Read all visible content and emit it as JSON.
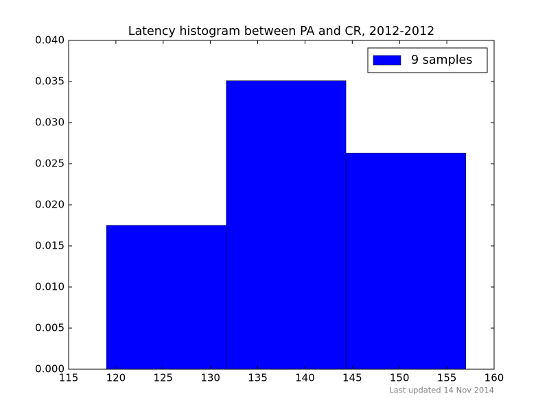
{
  "chart_data": {
    "type": "histogram",
    "title": "Latency histogram between PA and CR, 2012-2012",
    "bins": [
      119,
      131.67,
      144.33,
      157
    ],
    "series": [
      {
        "name": "9 samples",
        "color": "#0000ff",
        "values": [
          0.0175,
          0.0351,
          0.0263
        ]
      }
    ],
    "xlim": [
      115,
      160
    ],
    "xticks": [
      115,
      120,
      125,
      130,
      135,
      140,
      145,
      150,
      155,
      160
    ],
    "ylim": [
      0,
      0.04
    ],
    "yticks": [
      {
        "value": 0,
        "label": "0.000"
      },
      {
        "value": 0.005,
        "label": "0.005"
      },
      {
        "value": 0.01,
        "label": "0.010"
      },
      {
        "value": 0.015,
        "label": "0.015"
      },
      {
        "value": 0.02,
        "label": "0.020"
      },
      {
        "value": 0.025,
        "label": "0.025"
      },
      {
        "value": 0.03,
        "label": "0.030"
      },
      {
        "value": 0.035,
        "label": "0.035"
      },
      {
        "value": 0.04,
        "label": "0.040"
      }
    ],
    "legend": "upper right",
    "footnote": "Last updated 14 Nov 2014"
  }
}
